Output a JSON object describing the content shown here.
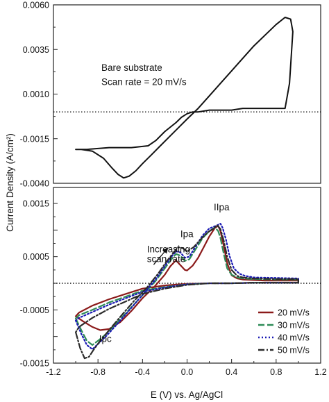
{
  "figure": {
    "ylabel": "Current Density (A/cm²)",
    "xlabel": "E (V) vs. Ag/AgCl"
  },
  "chart_data": [
    {
      "type": "line",
      "panel": "top",
      "xlim": [
        -1.2,
        1.2
      ],
      "ylim": [
        -0.004,
        0.006
      ],
      "yticks": [
        -0.004,
        -0.0015,
        0.001,
        0.0035,
        0.006
      ],
      "ytick_labels": [
        "-0.0040",
        "-0.0015",
        "0.0010",
        "0.0035",
        "0.0060"
      ],
      "zero_line": 0,
      "annotations": [
        {
          "id": "ann-top-1",
          "text": "Bare substrate",
          "x": -0.77,
          "y": 0.0023
        },
        {
          "id": "ann-top-2",
          "text": "Scan rate = 20 mV/s",
          "x": -0.77,
          "y": 0.0015
        }
      ],
      "series": [
        {
          "color": "#111111",
          "dash": "",
          "x": [
            -1.0,
            -0.95,
            -0.85,
            -0.75,
            -0.68,
            -0.62,
            -0.57,
            -0.52,
            -0.46,
            -0.4,
            -0.32,
            -0.24,
            -0.16,
            -0.08,
            0.0,
            0.1,
            0.2,
            0.3,
            0.4,
            0.5,
            0.6,
            0.7,
            0.8,
            0.88,
            0.93,
            0.95,
            0.92,
            0.88,
            0.86,
            0.85,
            0.8,
            0.7,
            0.6,
            0.5,
            0.4,
            0.3,
            0.2,
            0.1,
            0.05,
            0.0,
            -0.05,
            -0.1,
            -0.2,
            -0.28,
            -0.35,
            -0.5,
            -0.7,
            -0.9,
            -1.0
          ],
          "y": [
            -0.0021,
            -0.0021,
            -0.0022,
            -0.0026,
            -0.0031,
            -0.0035,
            -0.0037,
            -0.0036,
            -0.0033,
            -0.0029,
            -0.0024,
            -0.0019,
            -0.0014,
            -0.0009,
            -0.0004,
            0.0002,
            0.0009,
            0.0016,
            0.0023,
            0.003,
            0.0037,
            0.0043,
            0.0049,
            0.0053,
            0.0052,
            0.0045,
            0.0016,
            0.0002,
            0.0002,
            0.0002,
            0.0002,
            0.0002,
            0.0002,
            0.0002,
            0.0001,
            0.0001,
            0.0001,
            0.0,
            0.0,
            -0.0001,
            -0.0003,
            -0.0006,
            -0.0011,
            -0.0016,
            -0.0019,
            -0.002,
            -0.002,
            -0.0021,
            -0.0021
          ]
        }
      ]
    },
    {
      "type": "line",
      "panel": "bottom",
      "xlim": [
        -1.2,
        1.2
      ],
      "ylim": [
        -0.0015,
        0.0018
      ],
      "xticks": [
        -1.2,
        -0.8,
        -0.4,
        0.0,
        0.4,
        0.8,
        1.2
      ],
      "xtick_labels": [
        "-1.2",
        "-0.8",
        "-0.4",
        "0.0",
        "0.4",
        "0.8",
        "1.2"
      ],
      "yticks": [
        -0.0015,
        -0.001,
        -0.0005,
        0.0,
        0.0005,
        0.001,
        0.0015
      ],
      "ytick_labels": [
        "-0.0015",
        "",
        "-0.0005",
        "",
        "0.0005",
        "",
        "0.0015"
      ],
      "zero_line": 0,
      "annotations": [
        {
          "id": "ann-ipa",
          "text": "Ipa",
          "x": -0.06,
          "y": 0.00087
        },
        {
          "id": "ann-iipa",
          "text": "IIpa",
          "x": 0.24,
          "y": 0.00137
        },
        {
          "id": "ann-increasing",
          "text": "Increasing",
          "x": -0.36,
          "y": 0.00058
        },
        {
          "id": "ann-scanrate",
          "text": "scan rate",
          "x": -0.36,
          "y": 0.0004
        },
        {
          "id": "ann-ipc",
          "text": "Ipc",
          "x": -0.79,
          "y": -0.0011
        }
      ],
      "arrow": {
        "from": [
          -0.3,
          0.00035
        ],
        "to": [
          -0.17,
          0.00067
        ]
      },
      "legend_position": "bottom-right",
      "series": [
        {
          "name": "20 mV/s",
          "color": "#8b1a1a",
          "dash": "",
          "x": [
            -1.0,
            -0.93,
            -0.85,
            -0.78,
            -0.7,
            -0.6,
            -0.5,
            -0.4,
            -0.3,
            -0.2,
            -0.15,
            -0.1,
            -0.06,
            -0.02,
            0.0,
            0.05,
            0.1,
            0.15,
            0.2,
            0.25,
            0.28,
            0.3,
            0.33,
            0.36,
            0.4,
            0.45,
            0.5,
            0.6,
            0.7,
            0.8,
            1.0,
            1.0,
            0.8,
            0.6,
            0.4,
            0.2,
            0.0,
            -0.2,
            -0.4,
            -0.55,
            -0.7,
            -0.85,
            -0.97,
            -1.0
          ],
          "y": [
            -0.00062,
            -0.00072,
            -0.00082,
            -0.00088,
            -0.00086,
            -0.00073,
            -0.00052,
            -0.00028,
            -8e-05,
            0.00016,
            0.00032,
            0.00043,
            0.00034,
            0.00025,
            0.00024,
            0.00033,
            0.00048,
            0.00068,
            0.00088,
            0.00104,
            0.00108,
            0.00098,
            0.0007,
            0.00038,
            0.00015,
            9e-05,
            7e-05,
            6e-05,
            5e-05,
            5e-05,
            5e-05,
            1e-05,
            1e-05,
            1e-05,
            0.0,
            0.0,
            -1e-05,
            -4e-05,
            -0.0001,
            -0.0002,
            -0.0003,
            -0.00042,
            -0.00055,
            -0.00062
          ]
        },
        {
          "name": "30 mV/s",
          "color": "#2e8b57",
          "dash": "9,4",
          "x": [
            -1.0,
            -0.95,
            -0.9,
            -0.85,
            -0.8,
            -0.72,
            -0.62,
            -0.5,
            -0.38,
            -0.28,
            -0.2,
            -0.14,
            -0.1,
            -0.06,
            -0.02,
            0.02,
            0.08,
            0.14,
            0.2,
            0.25,
            0.28,
            0.3,
            0.33,
            0.36,
            0.4,
            0.45,
            0.5,
            0.6,
            0.8,
            1.0,
            1.0,
            0.8,
            0.6,
            0.4,
            0.2,
            0.0,
            -0.2,
            -0.4,
            -0.55,
            -0.7,
            -0.85,
            -0.97,
            -1.0
          ],
          "y": [
            -0.00066,
            -0.00088,
            -0.00108,
            -0.00116,
            -0.00108,
            -0.00094,
            -0.00072,
            -0.00045,
            -0.00018,
            5e-05,
            0.00028,
            0.00045,
            0.00055,
            0.00052,
            0.00042,
            0.00045,
            0.00065,
            0.00085,
            0.00098,
            0.00105,
            0.00098,
            0.00085,
            0.00055,
            0.00028,
            0.00016,
            0.00011,
            9e-05,
            8e-05,
            7e-05,
            7e-05,
            1e-05,
            1e-05,
            1e-05,
            0.0,
            0.0,
            -2e-05,
            -7e-05,
            -0.00014,
            -0.00025,
            -0.00036,
            -0.0005,
            -0.0006,
            -0.00066
          ]
        },
        {
          "name": "40 mV/s",
          "color": "#1a1ab4",
          "dash": "2,3",
          "x": [
            -1.0,
            -0.95,
            -0.9,
            -0.85,
            -0.8,
            -0.72,
            -0.62,
            -0.5,
            -0.38,
            -0.28,
            -0.2,
            -0.14,
            -0.1,
            -0.06,
            -0.02,
            0.02,
            0.08,
            0.14,
            0.2,
            0.26,
            0.3,
            0.32,
            0.35,
            0.38,
            0.42,
            0.47,
            0.52,
            0.6,
            0.8,
            1.0,
            1.0,
            0.8,
            0.6,
            0.4,
            0.2,
            0.0,
            -0.2,
            -0.4,
            -0.55,
            -0.7,
            -0.85,
            -0.97,
            -1.0
          ],
          "y": [
            -0.0007,
            -0.00095,
            -0.00116,
            -0.00124,
            -0.00114,
            -0.00098,
            -0.00075,
            -0.00046,
            -0.00017,
            8e-05,
            0.00032,
            0.0005,
            0.0006,
            0.00058,
            0.00048,
            0.0005,
            0.0007,
            0.0009,
            0.00103,
            0.00108,
            0.00112,
            0.00104,
            0.00082,
            0.00052,
            0.00028,
            0.00018,
            0.00014,
            0.00011,
            0.0001,
            9e-05,
            1e-05,
            1e-05,
            1e-05,
            0.0,
            0.0,
            -2e-05,
            -8e-05,
            -0.00016,
            -0.00028,
            -0.0004,
            -0.00054,
            -0.00065,
            -0.0007
          ]
        },
        {
          "name": "50 mV/s",
          "color": "#2b2b2b",
          "dash": "9,3,2,3",
          "x": [
            -1.0,
            -0.96,
            -0.92,
            -0.88,
            -0.84,
            -0.78,
            -0.7,
            -0.6,
            -0.48,
            -0.36,
            -0.26,
            -0.18,
            -0.12,
            -0.08,
            -0.04,
            0.0,
            0.06,
            0.12,
            0.18,
            0.24,
            0.27,
            0.3,
            0.33,
            0.36,
            0.4,
            0.45,
            0.5,
            0.6,
            0.8,
            1.0,
            1.0,
            0.8,
            0.6,
            0.4,
            0.2,
            0.0,
            -0.2,
            -0.4,
            -0.55,
            -0.7,
            -0.85,
            -0.97,
            -1.0
          ],
          "y": [
            -0.00092,
            -0.00122,
            -0.00141,
            -0.00138,
            -0.00125,
            -0.00108,
            -0.00088,
            -0.00063,
            -0.00034,
            -8e-05,
            0.00018,
            0.00042,
            0.00058,
            0.00068,
            0.00066,
            0.0006,
            0.00068,
            0.00082,
            0.00095,
            0.00103,
            0.00109,
            0.00102,
            0.0008,
            0.0005,
            0.00025,
            0.00014,
            0.00011,
            9e-05,
            8e-05,
            8e-05,
            1e-05,
            1e-05,
            1e-05,
            0.0,
            0.0,
            -3e-05,
            -0.0001,
            -0.0002,
            -0.00034,
            -0.00048,
            -0.00065,
            -0.00082,
            -0.00092
          ]
        }
      ]
    }
  ]
}
